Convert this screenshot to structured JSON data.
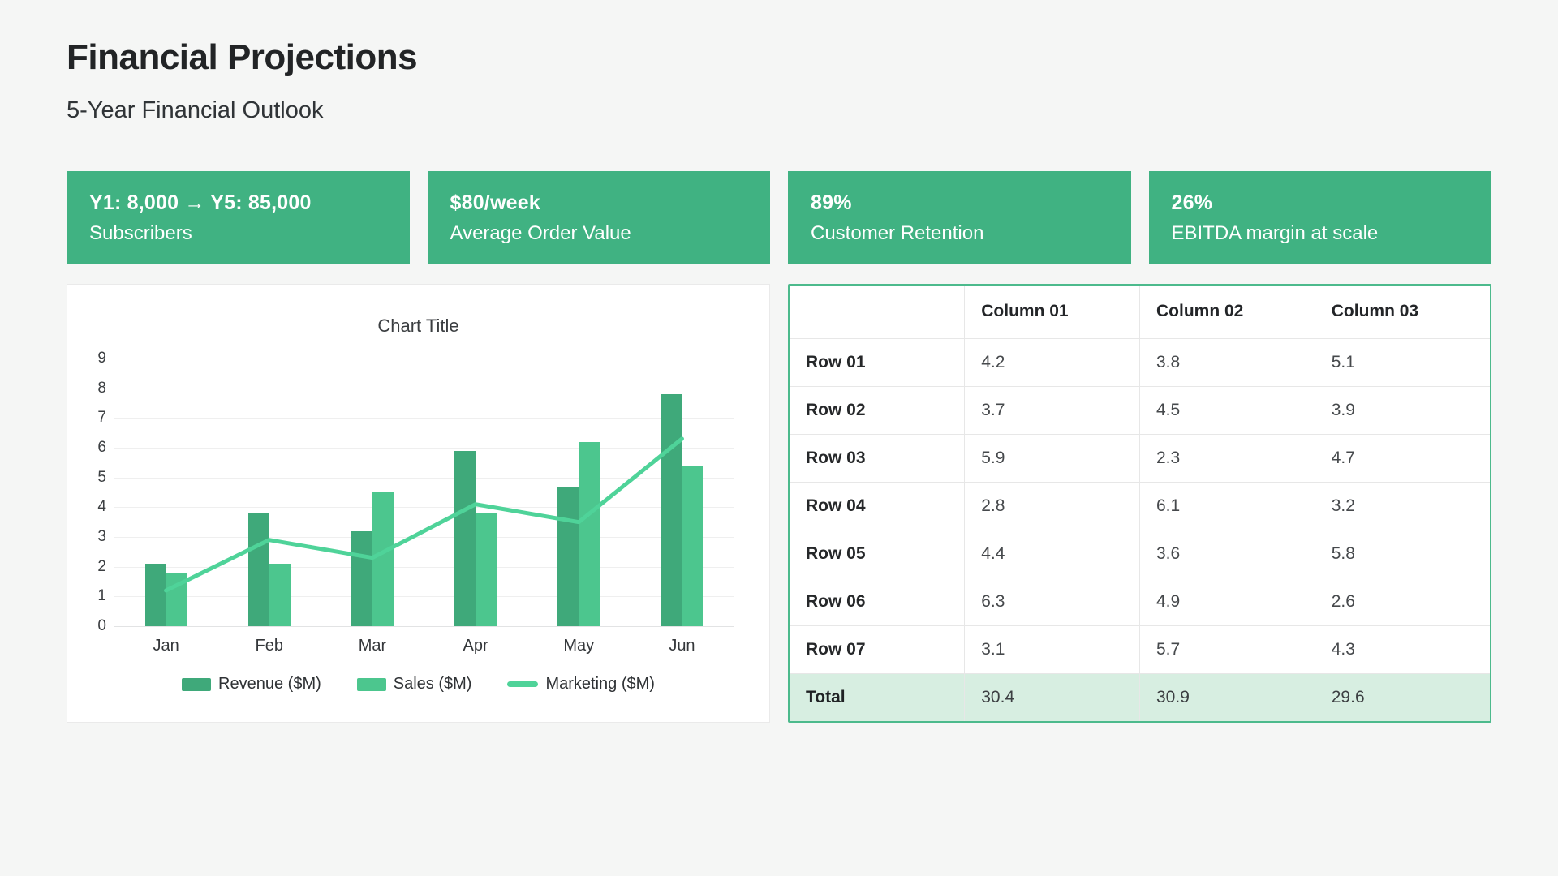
{
  "header": {
    "title": "Financial Projections",
    "subtitle": "5-Year Financial Outlook"
  },
  "cards": [
    {
      "value": "Y1: 8,000 → Y5: 85,000",
      "label": "Subscribers"
    },
    {
      "value": "$80/week",
      "label": "Average Order Value"
    },
    {
      "value": "89%",
      "label": "Customer Retention"
    },
    {
      "value": "26%",
      "label": "EBITDA margin at scale"
    }
  ],
  "chart_data": {
    "type": "bar",
    "title": "Chart Title",
    "categories": [
      "Jan",
      "Feb",
      "Mar",
      "Apr",
      "May",
      "Jun"
    ],
    "series": [
      {
        "name": "Revenue ($M)",
        "type": "bar",
        "color": "#3FA97A",
        "values": [
          2.1,
          3.8,
          3.2,
          5.9,
          4.7,
          7.8
        ]
      },
      {
        "name": "Sales ($M)",
        "type": "bar",
        "color": "#4CC68E",
        "values": [
          1.8,
          2.1,
          4.5,
          3.8,
          6.2,
          5.4
        ]
      },
      {
        "name": "Marketing ($M)",
        "type": "line",
        "color": "#4FD399",
        "values": [
          1.2,
          2.9,
          2.3,
          4.1,
          3.5,
          6.3
        ]
      }
    ],
    "xlabel": "",
    "ylabel": "",
    "ylim": [
      0,
      9
    ],
    "yticks": [
      0,
      1,
      2,
      3,
      4,
      5,
      6,
      7,
      8,
      9
    ],
    "grid": true,
    "legend_position": "bottom"
  },
  "table": {
    "columns": [
      "",
      "Column 01",
      "Column 02",
      "Column 03"
    ],
    "rows": [
      {
        "label": "Row 01",
        "values": [
          "4.2",
          "3.8",
          "5.1"
        ]
      },
      {
        "label": "Row 02",
        "values": [
          "3.7",
          "4.5",
          "3.9"
        ]
      },
      {
        "label": "Row 03",
        "values": [
          "5.9",
          "2.3",
          "4.7"
        ]
      },
      {
        "label": "Row 04",
        "values": [
          "2.8",
          "6.1",
          "3.2"
        ]
      },
      {
        "label": "Row 05",
        "values": [
          "4.4",
          "3.6",
          "5.8"
        ]
      },
      {
        "label": "Row 06",
        "values": [
          "6.3",
          "4.9",
          "2.6"
        ]
      },
      {
        "label": "Row 07",
        "values": [
          "3.1",
          "5.7",
          "4.3"
        ]
      }
    ],
    "total": {
      "label": "Total",
      "values": [
        "30.4",
        "30.9",
        "29.6"
      ]
    }
  },
  "colors": {
    "card_green": "#40B282",
    "revenue_bar": "#3FA97A",
    "sales_bar": "#4CC68E",
    "marketing_line": "#4FD399",
    "table_border": "#4CBA8C",
    "total_row_bg": "#D7EEE1"
  }
}
